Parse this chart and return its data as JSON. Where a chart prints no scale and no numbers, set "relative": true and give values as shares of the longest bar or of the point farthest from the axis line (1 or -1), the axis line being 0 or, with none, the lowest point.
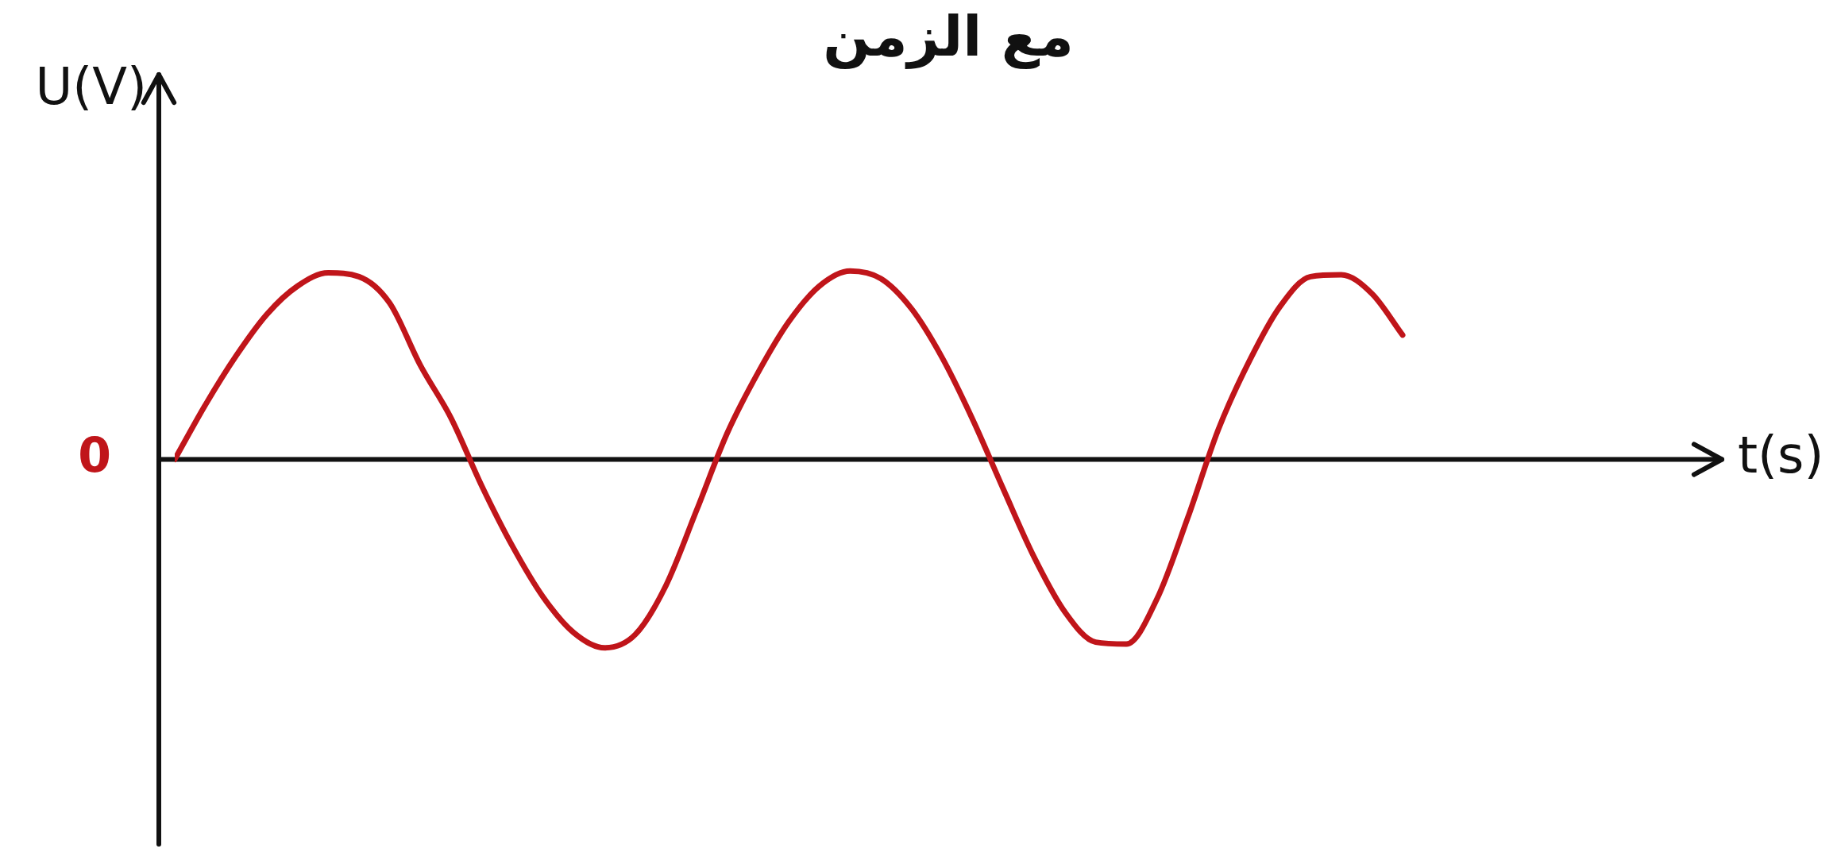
{
  "chart_data": {
    "type": "line",
    "title": "مع الزمن",
    "ylabel": "U(V)",
    "relative": true,
    "annotations": [
      "0",
      "t(s)"
    ],
    "categories": [
      null,
      null,
      null,
      null,
      null,
      null,
      null,
      null,
      null,
      null,
      null,
      null,
      null,
      null,
      null,
      null,
      null,
      null,
      null,
      null,
      null,
      null,
      null,
      null,
      null,
      null,
      null,
      null,
      null,
      null,
      null,
      null,
      null,
      null,
      null,
      null,
      null,
      null,
      null,
      null,
      null
    ],
    "series": [
      {
        "color": "#c0151a",
        "values": [
          0,
          0.29,
          0.55,
          0.77,
          0.92,
          0.99,
          0.97,
          0.83,
          0.5,
          0.22,
          -0.14,
          -0.46,
          -0.73,
          -0.92,
          -1,
          -0.93,
          -0.67,
          -0.27,
          0.14,
          0.46,
          0.73,
          0.92,
          1,
          0.96,
          0.8,
          0.54,
          0.21,
          -0.16,
          -0.52,
          -0.81,
          -0.97,
          -0.98,
          -0.74,
          -0.31,
          0.16,
          0.52,
          0.81,
          0.97,
          0.98,
          0.88,
          0.66
        ]
      }
    ],
    "grid": false,
    "legend": false,
    "marker": "none",
    "line_style": "solid"
  }
}
